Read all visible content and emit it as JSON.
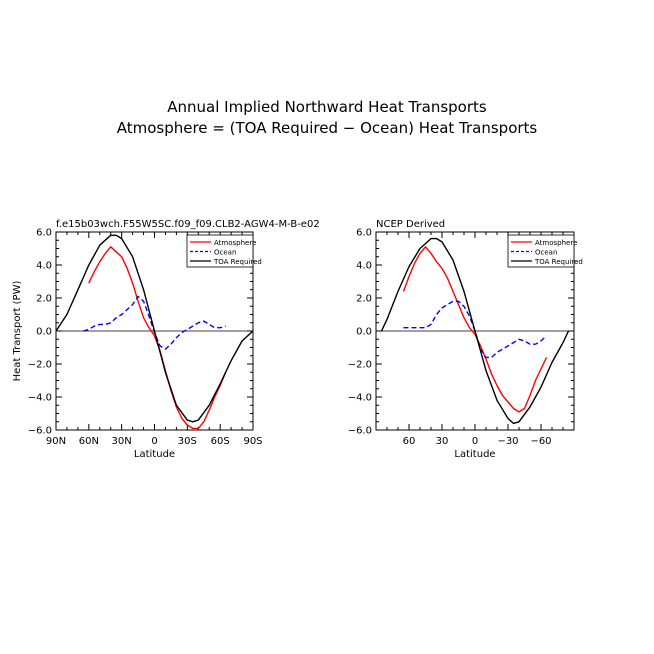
{
  "title_line1": "Annual Implied Northward Heat Transports",
  "title_line2": "Atmosphere = (TOA Required − Ocean) Heat Transports",
  "chart_data": [
    {
      "type": "line",
      "title": "f.e15b03wch.F55W5SC.f09_f09.CLB2-AGW4-M-B-e02",
      "xlabel": "Latitude",
      "ylabel": "Heat Transport (PW)",
      "xlim": [
        90,
        -90
      ],
      "ylim": [
        -6.0,
        6.0
      ],
      "xticks": [
        90,
        60,
        30,
        0,
        -30,
        -60,
        -90
      ],
      "xtick_labels": [
        "90N",
        "60N",
        "30N",
        "0",
        "30S",
        "60S",
        "90S"
      ],
      "yticks": [
        6.0,
        4.0,
        2.0,
        0.0,
        -2.0,
        -4.0,
        -6.0
      ],
      "ytick_labels": [
        "6.0",
        "4.0",
        "2.0",
        "0.0",
        "−2.0",
        "−4.0",
        "−6.0"
      ],
      "legend_position": "top-right",
      "series": [
        {
          "name": "Atmosphere",
          "color": "#ff0000",
          "dash": "solid",
          "x": [
            60,
            55,
            50,
            45,
            40,
            35,
            30,
            25,
            20,
            15,
            10,
            5,
            0,
            -5,
            -10,
            -15,
            -20,
            -25,
            -30,
            -35,
            -40,
            -45,
            -50,
            -55,
            -60,
            -65
          ],
          "y": [
            2.9,
            3.6,
            4.2,
            4.7,
            5.1,
            4.8,
            4.5,
            3.8,
            2.9,
            1.8,
            0.8,
            0.2,
            -0.3,
            -1.2,
            -2.4,
            -3.6,
            -4.6,
            -5.3,
            -5.7,
            -5.9,
            -5.9,
            -5.5,
            -4.8,
            -4.0,
            -3.3,
            -2.5
          ]
        },
        {
          "name": "Ocean",
          "color": "#0000ff",
          "dash": "dashed",
          "x": [
            65,
            60,
            55,
            50,
            45,
            40,
            35,
            30,
            25,
            20,
            15,
            10,
            5,
            0,
            -5,
            -10,
            -15,
            -20,
            -25,
            -30,
            -35,
            -40,
            -45,
            -50,
            -55,
            -60,
            -65
          ],
          "y": [
            0.0,
            0.1,
            0.3,
            0.4,
            0.4,
            0.5,
            0.8,
            1.0,
            1.3,
            1.6,
            2.1,
            1.8,
            0.9,
            -0.1,
            -0.9,
            -1.1,
            -0.8,
            -0.4,
            -0.1,
            0.1,
            0.3,
            0.5,
            0.6,
            0.4,
            0.2,
            0.2,
            0.3
          ]
        },
        {
          "name": "TOA Required",
          "color": "#000000",
          "dash": "solid",
          "x": [
            90,
            80,
            70,
            60,
            50,
            40,
            35,
            30,
            20,
            10,
            0,
            -10,
            -20,
            -30,
            -35,
            -40,
            -50,
            -60,
            -70,
            -80,
            -90
          ],
          "y": [
            0.0,
            1.0,
            2.5,
            4.0,
            5.2,
            5.8,
            5.8,
            5.6,
            4.5,
            2.5,
            0.0,
            -2.5,
            -4.5,
            -5.4,
            -5.5,
            -5.4,
            -4.5,
            -3.2,
            -1.8,
            -0.6,
            0.0
          ]
        }
      ]
    },
    {
      "type": "line",
      "title": "NCEP Derived",
      "xlabel": "Latitude",
      "ylabel": "",
      "xlim": [
        90,
        -90
      ],
      "ylim": [
        -6.0,
        6.0
      ],
      "xticks": [
        60,
        30,
        0,
        -30,
        -60
      ],
      "xtick_labels": [
        "60",
        "30",
        "0",
        "−30",
        "−60"
      ],
      "yticks": [
        6.0,
        4.0,
        2.0,
        0.0,
        -2.0,
        -4.0,
        -6.0
      ],
      "ytick_labels": [
        "6.0",
        "4.0",
        "2.0",
        "0.0",
        "−2.0",
        "−4.0",
        "−6.0"
      ],
      "legend_position": "top-right",
      "series": [
        {
          "name": "Atmosphere",
          "color": "#ff0000",
          "dash": "solid",
          "x": [
            65,
            60,
            55,
            50,
            45,
            40,
            35,
            30,
            25,
            20,
            15,
            10,
            5,
            0,
            -5,
            -10,
            -15,
            -20,
            -25,
            -30,
            -35,
            -40,
            -45,
            -50,
            -55,
            -60,
            -65
          ],
          "y": [
            2.4,
            3.3,
            4.1,
            4.7,
            5.1,
            4.7,
            4.2,
            3.8,
            3.2,
            2.4,
            1.6,
            0.8,
            0.2,
            -0.2,
            -0.9,
            -1.7,
            -2.6,
            -3.3,
            -3.9,
            -4.3,
            -4.7,
            -4.9,
            -4.7,
            -3.9,
            -3.0,
            -2.3,
            -1.6
          ]
        },
        {
          "name": "Ocean",
          "color": "#0000ff",
          "dash": "dashed",
          "x": [
            65,
            60,
            55,
            50,
            45,
            40,
            35,
            30,
            25,
            20,
            15,
            10,
            5,
            0,
            -5,
            -10,
            -15,
            -20,
            -25,
            -30,
            -35,
            -40,
            -45,
            -50,
            -55,
            -60,
            -65
          ],
          "y": [
            0.2,
            0.2,
            0.2,
            0.2,
            0.2,
            0.4,
            1.0,
            1.4,
            1.6,
            1.8,
            1.8,
            1.5,
            0.9,
            0.0,
            -1.1,
            -1.6,
            -1.6,
            -1.3,
            -1.1,
            -0.9,
            -0.7,
            -0.5,
            -0.6,
            -0.8,
            -0.8,
            -0.6,
            -0.3
          ]
        },
        {
          "name": "TOA Required",
          "color": "#000000",
          "dash": "solid",
          "x": [
            85,
            80,
            70,
            60,
            50,
            40,
            35,
            30,
            20,
            10,
            0,
            -10,
            -20,
            -30,
            -35,
            -40,
            -50,
            -60,
            -70,
            -80,
            -85
          ],
          "y": [
            0.0,
            0.7,
            2.4,
            3.9,
            5.0,
            5.6,
            5.6,
            5.4,
            4.3,
            2.4,
            0.0,
            -2.4,
            -4.2,
            -5.3,
            -5.6,
            -5.5,
            -4.6,
            -3.4,
            -1.9,
            -0.7,
            0.0
          ]
        }
      ]
    }
  ]
}
